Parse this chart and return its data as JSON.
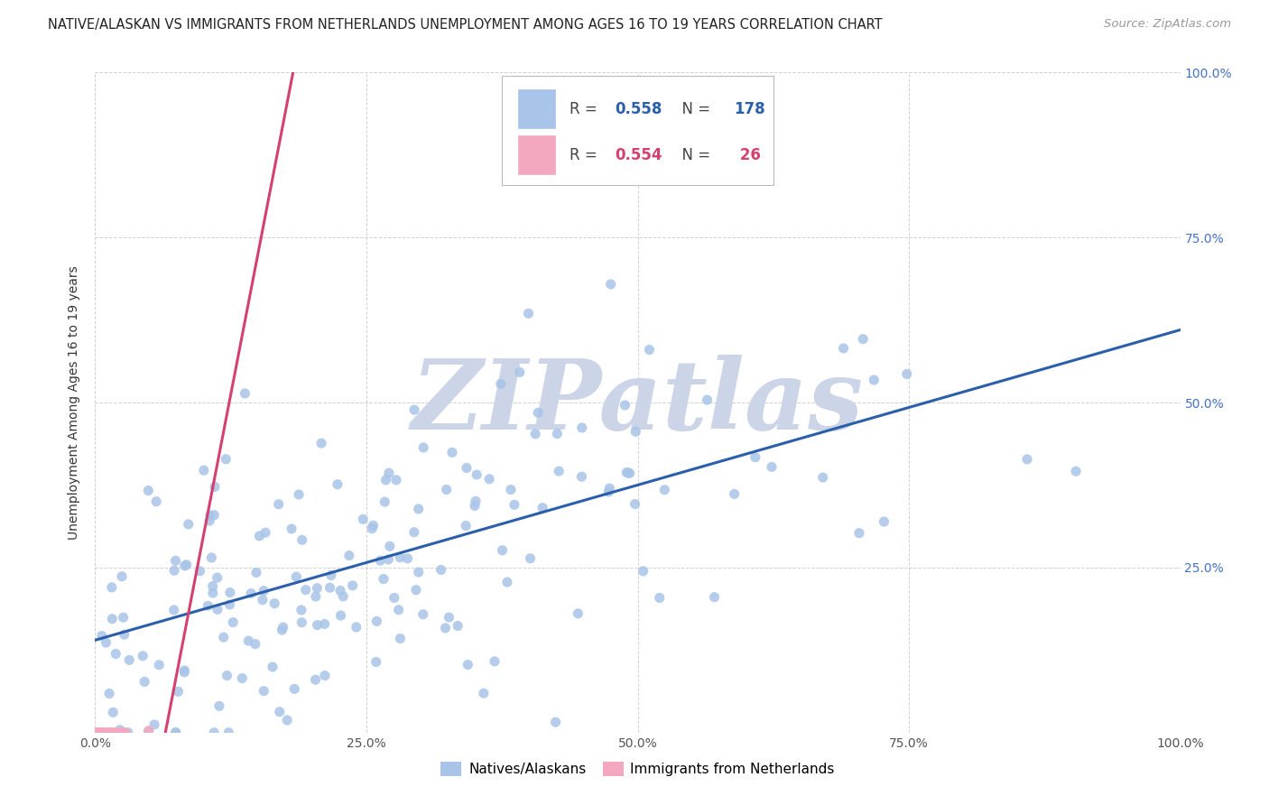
{
  "title": "NATIVE/ALASKAN VS IMMIGRANTS FROM NETHERLANDS UNEMPLOYMENT AMONG AGES 16 TO 19 YEARS CORRELATION CHART",
  "source": "Source: ZipAtlas.com",
  "ylabel": "Unemployment Among Ages 16 to 19 years",
  "xlim": [
    0.0,
    1.0
  ],
  "ylim": [
    0.0,
    1.0
  ],
  "xticks": [
    0.0,
    0.25,
    0.5,
    0.75,
    1.0
  ],
  "yticks": [
    0.25,
    0.5,
    0.75,
    1.0
  ],
  "xticklabels": [
    "0.0%",
    "25.0%",
    "50.0%",
    "75.0%",
    "100.0%"
  ],
  "yticklabels": [
    "25.0%",
    "50.0%",
    "75.0%",
    "100.0%"
  ],
  "blue_scatter_color": "#a8c4e8",
  "pink_scatter_color": "#f4a8c0",
  "blue_line_color": "#2b5faa",
  "pink_line_color": "#d44070",
  "legend_R_blue": "0.558",
  "legend_N_blue": "178",
  "legend_R_pink": "0.554",
  "legend_N_pink": " 26",
  "watermark": "ZIPatlas",
  "watermark_color": "#ccd5e8",
  "background_color": "#ffffff",
  "right_tick_color": "#4472c4",
  "N_blue": 178,
  "N_pink": 26,
  "R_blue": 0.558,
  "R_pink": 0.554,
  "blue_intercept": 0.14,
  "blue_slope": 0.47,
  "pink_intercept": -0.55,
  "pink_slope": 8.5
}
